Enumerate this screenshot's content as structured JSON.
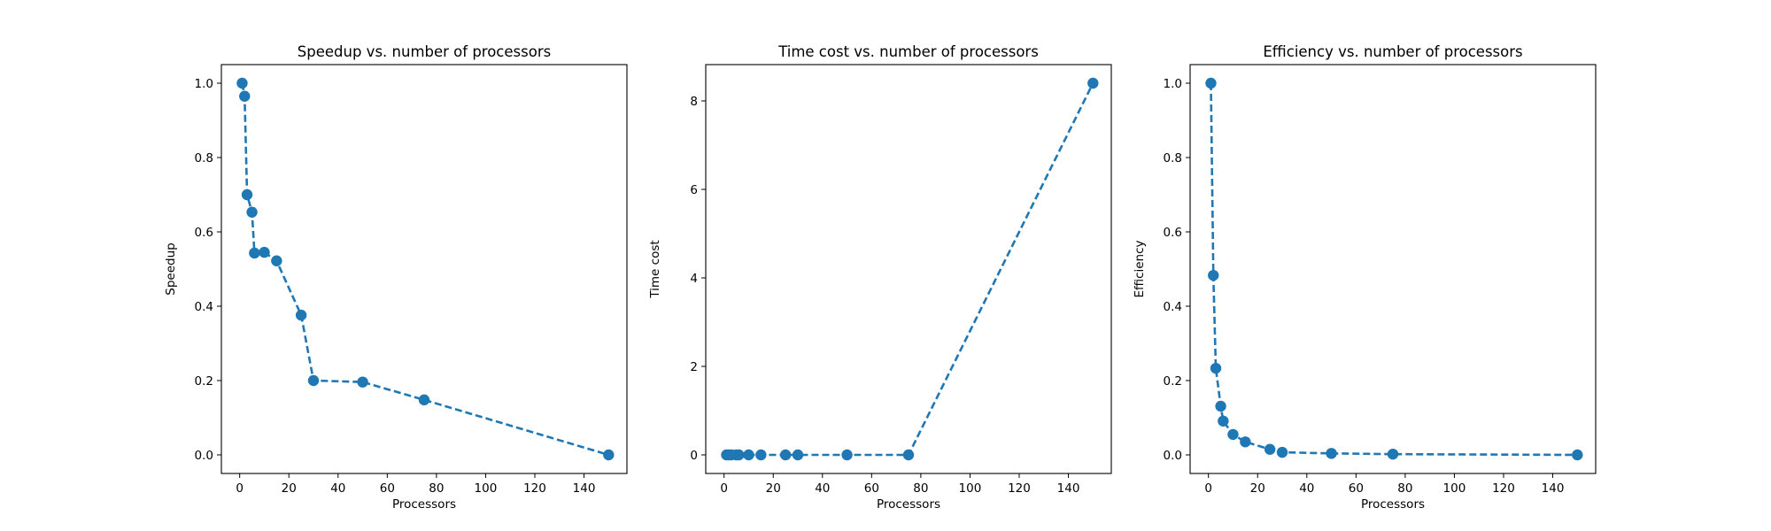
{
  "chart_data": [
    {
      "type": "line",
      "title": "Speedup vs. number of processors",
      "xlabel": "Processors",
      "ylabel": "Speedup",
      "xlim": [
        -7.45,
        157.45
      ],
      "ylim": [
        -0.05,
        1.05
      ],
      "xticks": [
        "0",
        "20",
        "40",
        "60",
        "80",
        "100",
        "120",
        "140"
      ],
      "yticks": [
        "0.0",
        "0.2",
        "0.4",
        "0.6",
        "0.8",
        "1.0"
      ],
      "grid": false,
      "series": [
        {
          "x": [
            1,
            2,
            3,
            5,
            6,
            10,
            15,
            25,
            30,
            50,
            75,
            150
          ],
          "y": [
            1.0,
            0.965,
            0.7,
            0.653,
            0.543,
            0.545,
            0.522,
            0.376,
            0.2,
            0.196,
            0.148,
            0.0
          ],
          "color": "#1f77b4",
          "line_style": "dashed",
          "marker": "circle"
        }
      ]
    },
    {
      "type": "line",
      "title": "Time cost vs. number of processors",
      "xlabel": "Processors",
      "ylabel": "Time cost",
      "xlim": [
        -7.45,
        157.45
      ],
      "ylim": [
        -0.42,
        8.82
      ],
      "xticks": [
        "0",
        "20",
        "40",
        "60",
        "80",
        "100",
        "120",
        "140"
      ],
      "yticks": [
        "0",
        "2",
        "4",
        "6",
        "8"
      ],
      "grid": false,
      "series": [
        {
          "x": [
            1,
            2,
            3,
            5,
            6,
            10,
            15,
            25,
            30,
            50,
            75,
            150
          ],
          "y": [
            0.0,
            0.0,
            0.0,
            0.0,
            0.0,
            0.0,
            0.0,
            0.0,
            0.0,
            0.0,
            0.0,
            8.4
          ],
          "color": "#1f77b4",
          "line_style": "dashed",
          "marker": "circle"
        }
      ]
    },
    {
      "type": "line",
      "title": "Efficiency vs. number of processors",
      "xlabel": "Processors",
      "ylabel": "Efficiency",
      "xlim": [
        -7.45,
        157.45
      ],
      "ylim": [
        -0.05,
        1.05
      ],
      "xticks": [
        "0",
        "20",
        "40",
        "60",
        "80",
        "100",
        "120",
        "140"
      ],
      "yticks": [
        "0.0",
        "0.2",
        "0.4",
        "0.6",
        "0.8",
        "1.0"
      ],
      "grid": false,
      "series": [
        {
          "x": [
            1,
            2,
            3,
            5,
            6,
            10,
            15,
            25,
            30,
            50,
            75,
            150
          ],
          "y": [
            1.0,
            0.483,
            0.233,
            0.131,
            0.091,
            0.055,
            0.035,
            0.015,
            0.007,
            0.004,
            0.002,
            0.0
          ],
          "color": "#1f77b4",
          "line_style": "dashed",
          "marker": "circle"
        }
      ]
    }
  ]
}
